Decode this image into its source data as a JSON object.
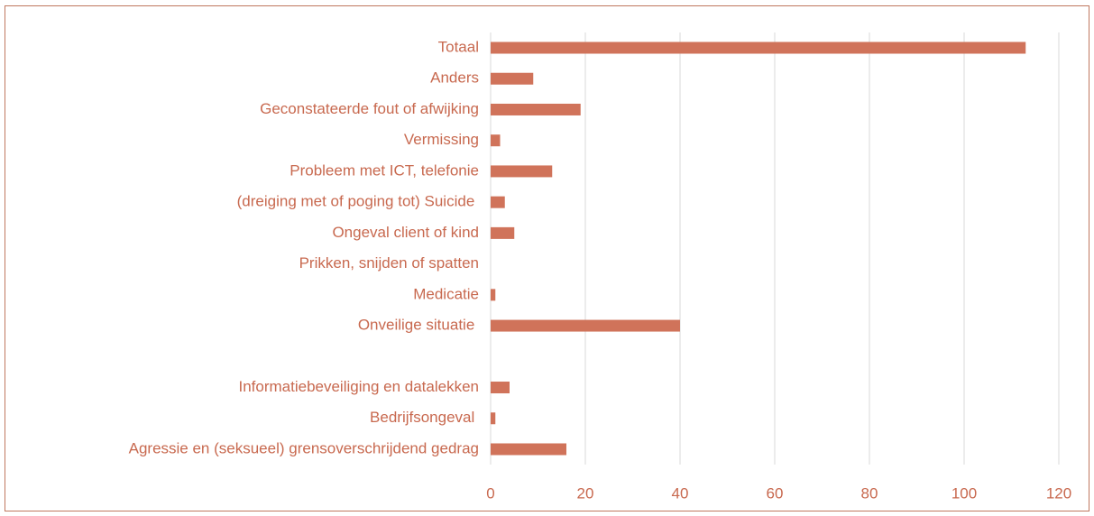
{
  "chart_data": {
    "type": "bar",
    "orientation": "horizontal",
    "categories": [
      "Totaal",
      "Anders",
      "Geconstateerde fout of afwijking",
      "Vermissing",
      "Probleem met ICT, telefonie",
      "(dreiging met of poging tot) Suicide ",
      "Ongeval client of kind",
      "Prikken, snijden of spatten",
      "Medicatie",
      "Onveilige situatie ",
      null,
      "Informatiebeveiliging en datalekken",
      "Bedrijfsongeval ",
      "Agressie en (seksueel) grensoverschrijdend gedrag"
    ],
    "values": [
      113,
      9,
      19,
      2,
      13,
      3,
      5,
      0,
      1,
      40,
      null,
      4,
      1,
      16
    ],
    "color": "#d0735a",
    "xlim": [
      0,
      120
    ],
    "xticks": [
      0,
      20,
      40,
      60,
      80,
      100,
      120
    ],
    "grid": true
  }
}
